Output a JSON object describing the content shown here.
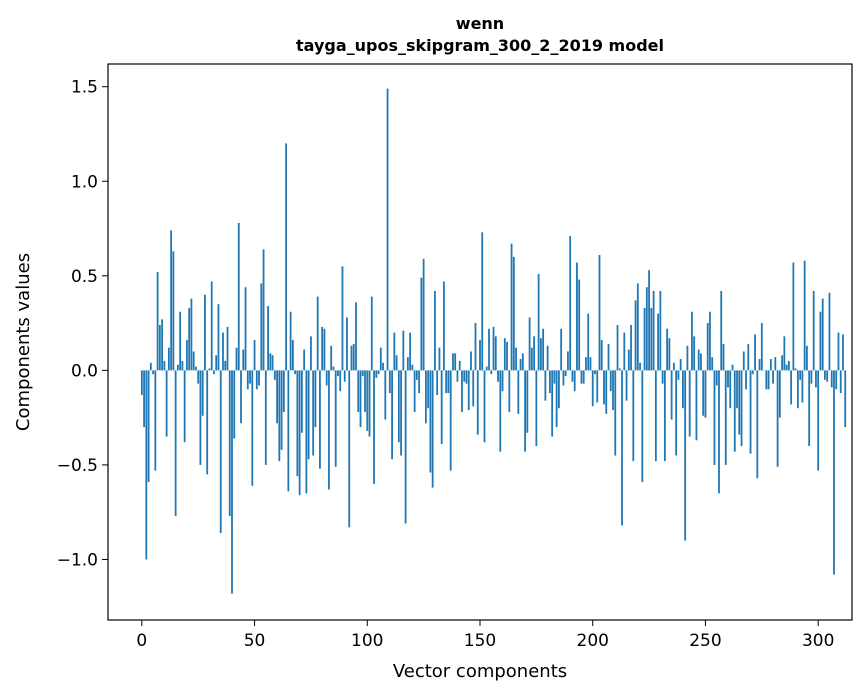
{
  "chart_data": {
    "type": "bar",
    "title_lines": [
      "wenn",
      "tayga_upos_skipgram_300_2_2019 model"
    ],
    "xlabel": "Vector components",
    "ylabel": "Components values",
    "xlim": [
      -15,
      315
    ],
    "ylim": [
      -1.32,
      1.62
    ],
    "xticks": [
      {
        "value": 0,
        "label": "0"
      },
      {
        "value": 50,
        "label": "50"
      },
      {
        "value": 100,
        "label": "100"
      },
      {
        "value": 150,
        "label": "150"
      },
      {
        "value": 200,
        "label": "200"
      },
      {
        "value": 250,
        "label": "250"
      },
      {
        "value": 300,
        "label": "300"
      }
    ],
    "yticks": [
      {
        "value": -1.0,
        "label": "−1.0"
      },
      {
        "value": -0.5,
        "label": "−0.5"
      },
      {
        "value": 0.0,
        "label": "0.0"
      },
      {
        "value": 0.5,
        "label": "0.5"
      },
      {
        "value": 1.0,
        "label": "1.0"
      },
      {
        "value": 1.5,
        "label": "1.5"
      }
    ],
    "grid": false,
    "bar_color": "#1f77b4",
    "values": [
      -0.13,
      -0.3,
      -1.0,
      -0.59,
      0.04,
      -0.02,
      -0.53,
      0.52,
      0.24,
      0.27,
      0.05,
      -0.35,
      0.12,
      0.74,
      0.63,
      -0.77,
      0.03,
      0.31,
      0.05,
      -0.38,
      0.16,
      0.33,
      0.38,
      0.1,
      0.02,
      -0.07,
      -0.5,
      -0.24,
      0.4,
      -0.55,
      0.01,
      0.47,
      -0.02,
      0.08,
      0.35,
      -0.86,
      0.2,
      0.05,
      0.23,
      -0.77,
      -1.18,
      -0.36,
      0.12,
      0.78,
      -0.28,
      0.11,
      0.44,
      -0.1,
      -0.07,
      -0.61,
      0.16,
      -0.1,
      -0.08,
      0.46,
      0.64,
      -0.5,
      0.34,
      0.09,
      0.08,
      -0.05,
      -0.28,
      -0.48,
      -0.42,
      -0.22,
      1.2,
      -0.64,
      0.31,
      0.16,
      -0.02,
      -0.56,
      -0.66,
      -0.33,
      0.11,
      -0.65,
      -0.47,
      0.18,
      -0.45,
      -0.3,
      0.39,
      -0.52,
      0.23,
      0.22,
      -0.08,
      -0.63,
      0.13,
      0.02,
      -0.51,
      -0.03,
      -0.11,
      0.55,
      -0.06,
      0.28,
      -0.83,
      0.13,
      0.14,
      0.36,
      -0.22,
      -0.3,
      -0.03,
      -0.22,
      -0.32,
      -0.35,
      0.39,
      -0.6,
      -0.04,
      -0.02,
      0.12,
      0.04,
      -0.26,
      1.49,
      -0.12,
      -0.47,
      0.2,
      0.08,
      -0.38,
      -0.45,
      0.21,
      -0.81,
      0.07,
      0.2,
      0.03,
      -0.22,
      -0.05,
      -0.12,
      0.49,
      0.59,
      -0.28,
      -0.2,
      -0.54,
      -0.62,
      0.42,
      -0.13,
      0.12,
      -0.39,
      0.47,
      -0.12,
      -0.12,
      -0.53,
      0.09,
      0.09,
      -0.06,
      0.05,
      -0.22,
      -0.06,
      -0.07,
      -0.21,
      0.1,
      -0.19,
      0.25,
      -0.34,
      0.16,
      0.73,
      -0.38,
      0.02,
      0.22,
      -0.02,
      0.23,
      0.18,
      -0.06,
      -0.43,
      -0.11,
      0.17,
      0.15,
      -0.22,
      0.67,
      0.6,
      0.12,
      -0.23,
      0.06,
      0.09,
      -0.43,
      -0.33,
      0.28,
      0.12,
      0.18,
      -0.4,
      0.51,
      0.17,
      0.22,
      -0.16,
      0.13,
      -0.12,
      -0.35,
      -0.07,
      -0.3,
      -0.2,
      0.22,
      -0.08,
      -0.03,
      0.1,
      0.71,
      -0.06,
      -0.11,
      0.57,
      0.48,
      -0.07,
      -0.07,
      0.07,
      0.3,
      0.07,
      -0.19,
      -0.02,
      -0.17,
      0.61,
      0.16,
      -0.18,
      -0.23,
      0.14,
      -0.11,
      -0.21,
      -0.45,
      0.24,
      0.01,
      -0.82,
      0.2,
      -0.16,
      0.11,
      0.24,
      -0.48,
      0.37,
      0.46,
      0.04,
      -0.59,
      0.33,
      0.44,
      0.53,
      0.33,
      0.42,
      -0.48,
      0.3,
      0.42,
      -0.07,
      -0.48,
      0.22,
      0.17,
      -0.26,
      0.04,
      -0.45,
      -0.05,
      0.06,
      -0.2,
      -0.9,
      0.13,
      -0.35,
      0.31,
      0.18,
      -0.37,
      0.11,
      0.09,
      -0.24,
      -0.25,
      0.25,
      0.31,
      0.07,
      -0.5,
      -0.08,
      -0.65,
      0.42,
      0.14,
      -0.5,
      -0.09,
      -0.2,
      0.03,
      -0.43,
      -0.2,
      -0.34,
      -0.4,
      0.1,
      -0.1,
      0.14,
      -0.44,
      -0.02,
      0.19,
      -0.57,
      0.06,
      0.25,
      0.0,
      -0.1,
      -0.1,
      0.06,
      -0.07,
      0.07,
      -0.51,
      -0.25,
      0.08,
      0.18,
      0.03,
      0.05,
      -0.18,
      0.57,
      0.01,
      -0.2,
      -0.05,
      -0.17,
      0.58,
      0.13,
      -0.4,
      -0.07,
      0.42,
      -0.09,
      -0.53,
      0.31,
      0.38,
      -0.05,
      -0.06,
      0.41,
      -0.09,
      -1.08,
      -0.1,
      0.2,
      -0.12,
      0.19,
      -0.3
    ]
  }
}
